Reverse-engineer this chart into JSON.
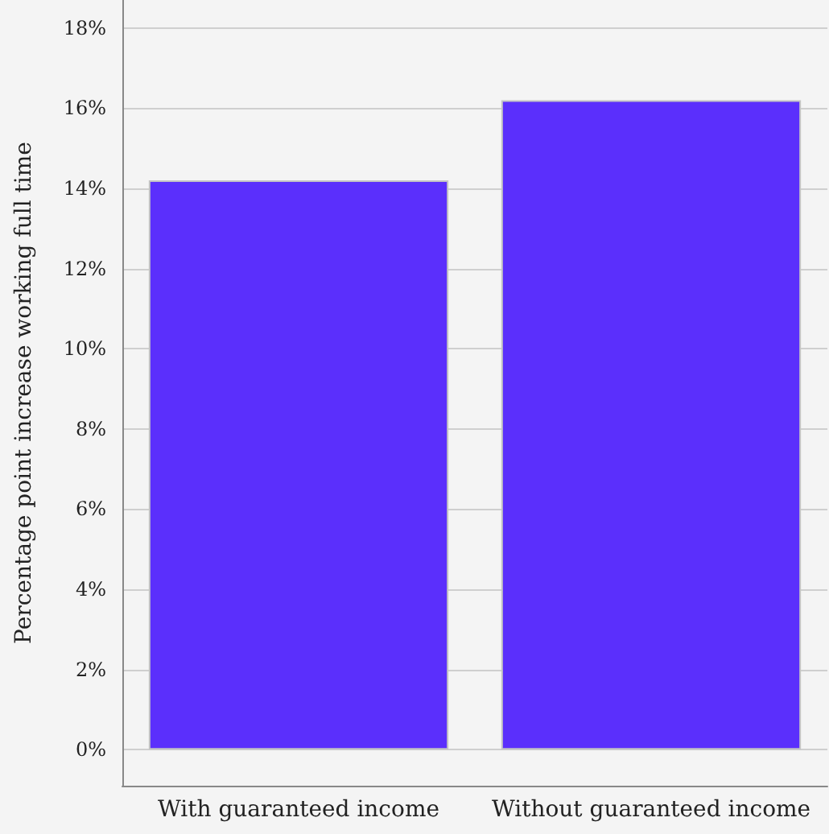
{
  "chart_data": {
    "type": "bar",
    "ylabel": "Percentage point increase working full time",
    "categories": [
      "With guaranteed income",
      "Without guaranteed income"
    ],
    "values": [
      14.2,
      16.2
    ],
    "color": "#5b2ffc",
    "ylim": [
      -0.9,
      18.7
    ],
    "yticks": [
      {
        "value": 0,
        "label": "0%"
      },
      {
        "value": 2,
        "label": "2%"
      },
      {
        "value": 4,
        "label": "4%"
      },
      {
        "value": 6,
        "label": "6%"
      },
      {
        "value": 8,
        "label": "8%"
      },
      {
        "value": 10,
        "label": "10%"
      },
      {
        "value": 12,
        "label": "12%"
      },
      {
        "value": 14,
        "label": "14%"
      },
      {
        "value": 16,
        "label": "16%"
      },
      {
        "value": 18,
        "label": "18%"
      }
    ],
    "grid": "y"
  }
}
